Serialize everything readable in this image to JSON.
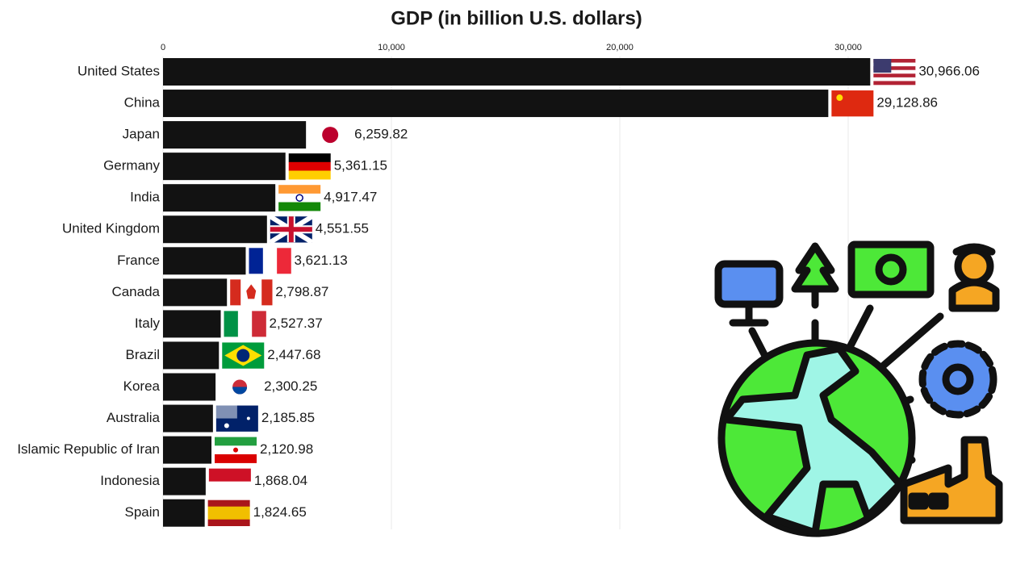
{
  "chart_data": {
    "type": "bar",
    "orientation": "horizontal",
    "title": "GDP (in billion U.S. dollars)",
    "categories": [
      "United States",
      "China",
      "Japan",
      "Germany",
      "India",
      "United Kingdom",
      "France",
      "Canada",
      "Italy",
      "Brazil",
      "Korea",
      "Australia",
      "Islamic Republic of Iran",
      "Indonesia",
      "Spain"
    ],
    "values": [
      30966.06,
      29128.86,
      6259.82,
      5361.15,
      4917.47,
      4551.55,
      3621.13,
      2798.87,
      2527.37,
      2447.68,
      2300.25,
      2185.85,
      2120.98,
      1868.04,
      1824.65
    ],
    "value_labels": [
      "30,966.06",
      "29,128.86",
      "6,259.82",
      "5,361.15",
      "4,917.47",
      "4,551.55",
      "3,621.13",
      "2,798.87",
      "2,527.37",
      "2,447.68",
      "2,300.25",
      "2,185.85",
      "2,120.98",
      "1,868.04",
      "1,824.65"
    ],
    "color": "#121212",
    "xlim": [
      0,
      32000
    ],
    "xticks": [
      0,
      {
        "value": 10000,
        "label": "10,000"
      },
      {
        "value": 20000,
        "label": "20,000"
      },
      {
        "value": 30000,
        "label": "30,000"
      }
    ],
    "grid": true
  }
}
